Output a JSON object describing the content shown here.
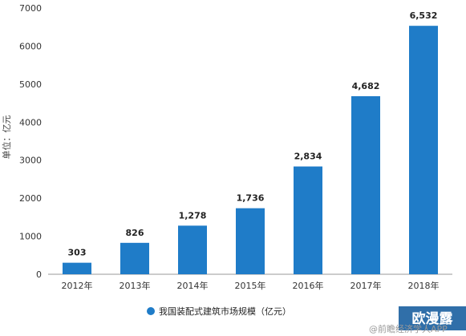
{
  "chart_data": {
    "type": "bar",
    "categories": [
      "2012年",
      "2013年",
      "2014年",
      "2015年",
      "2016年",
      "2017年",
      "2018年"
    ],
    "series": [
      {
        "name": "我国装配式建筑市场规模（亿元）",
        "values": [
          303,
          826,
          1278,
          1736,
          2834,
          4682,
          6532
        ],
        "labels": [
          "303",
          "826",
          "1,278",
          "1,736",
          "2,834",
          "4,682",
          "6,532"
        ]
      }
    ],
    "yticks": [
      "0",
      "1000",
      "2000",
      "3000",
      "4000",
      "5000",
      "6000",
      "7000"
    ],
    "ylabel": "单位：亿元",
    "ylim": [
      0,
      7000
    ],
    "legend_position": "bottom",
    "colors": {
      "bar": "#1f7cc8",
      "axis": "#999999"
    }
  },
  "watermark": {
    "source": "@前瞻经济学人APP",
    "badge": "欧漫露"
  }
}
